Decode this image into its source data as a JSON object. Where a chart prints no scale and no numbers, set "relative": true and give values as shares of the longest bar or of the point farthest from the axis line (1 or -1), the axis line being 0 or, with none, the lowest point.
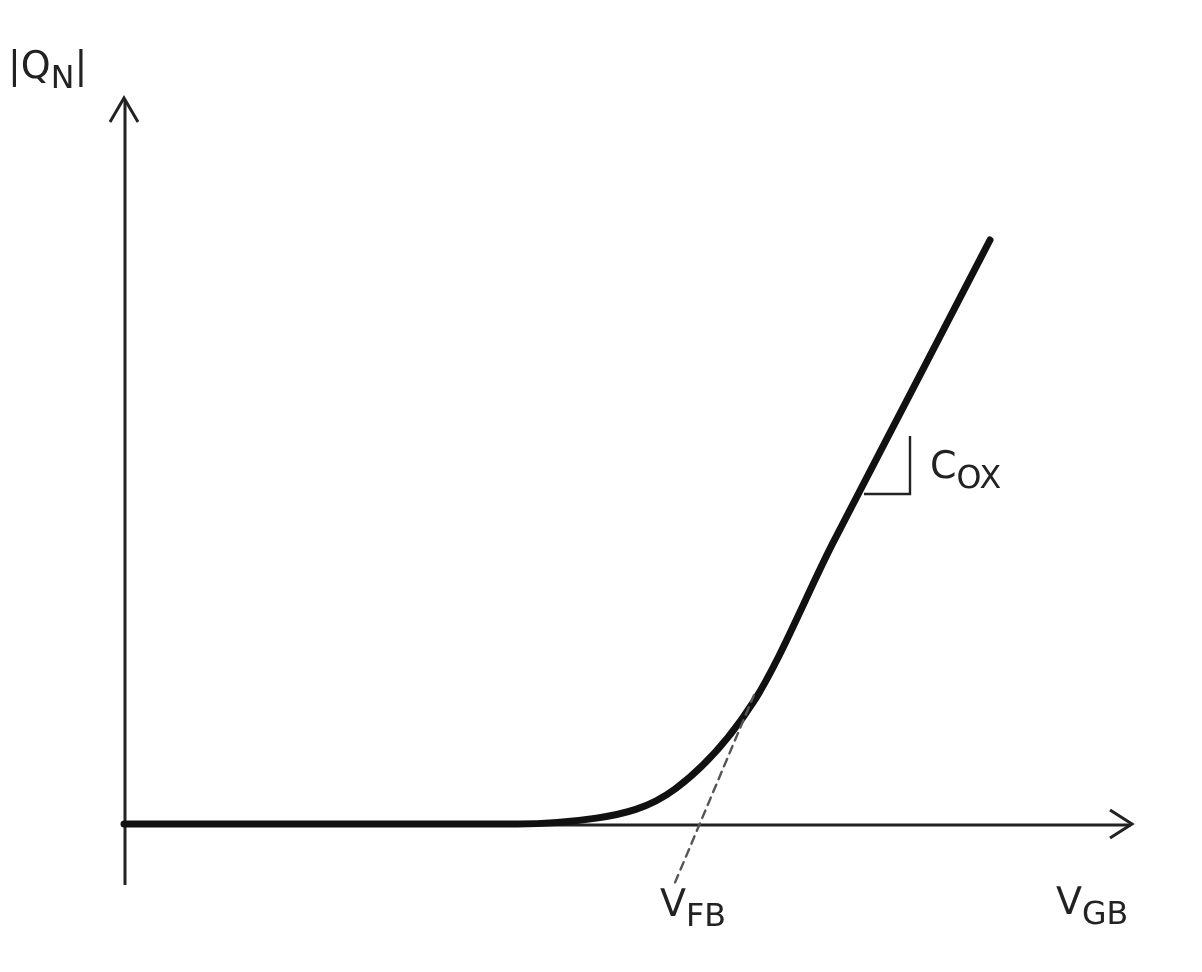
{
  "chart_data": {
    "type": "line",
    "relative": true,
    "xlabel": "V$_{GB}$",
    "ylabel": "|Q$_{N}$|",
    "tick_labels": false,
    "categories": [
      null,
      null,
      null,
      null,
      null,
      null,
      null,
      null,
      null,
      null,
      null,
      null
    ],
    "series": [
      {
        "color": "#111111",
        "line_style": "solid",
        "values": [
          0,
          0,
          0,
          0,
          0,
          0,
          0.01,
          0.06,
          0.21,
          0.48,
          0.74,
          1
        ]
      },
      {
        "color": "#555555",
        "line_style": "dashed",
        "values": [
          null,
          null,
          null,
          null,
          null,
          null,
          null,
          -0.1,
          0.22,
          null,
          null,
          null
        ]
      }
    ],
    "annotations": [
      "V$_{FB}$",
      "C$_{OX}$"
    ]
  }
}
